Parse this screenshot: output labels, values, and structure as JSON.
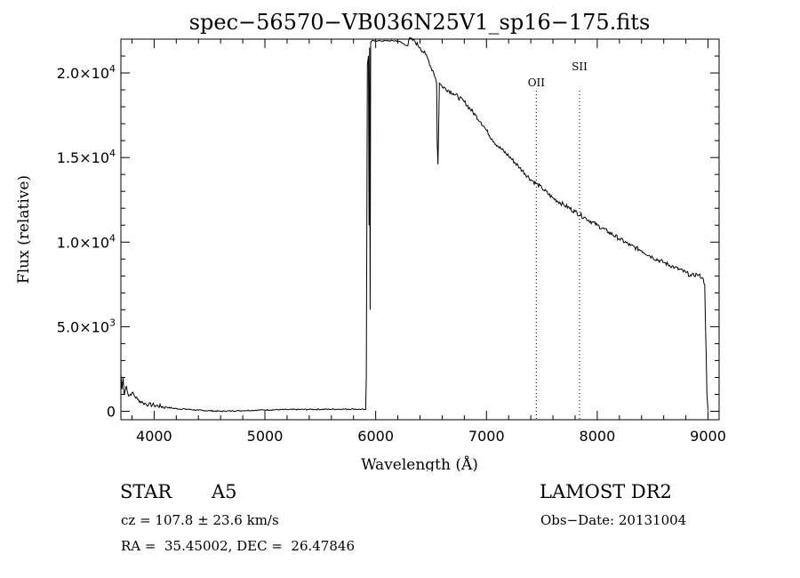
{
  "chart_data": {
    "type": "line",
    "title": "spec−56570−VB036N25V1_sp16−175.fits",
    "xlabel": "Wavelength (Å)",
    "ylabel": "Flux (relative)",
    "xlim": [
      3700,
      9100
    ],
    "ylim": [
      -500,
      22000
    ],
    "x_ticks": [
      {
        "value": 4000,
        "label": "4000"
      },
      {
        "value": 5000,
        "label": "5000"
      },
      {
        "value": 6000,
        "label": "6000"
      },
      {
        "value": 7000,
        "label": "7000"
      },
      {
        "value": 8000,
        "label": "8000"
      },
      {
        "value": 9000,
        "label": "9000"
      }
    ],
    "y_ticks": [
      {
        "value": 0,
        "mantissa": "0",
        "exp": ""
      },
      {
        "value": 5000,
        "mantissa": "5.0×10",
        "exp": "3"
      },
      {
        "value": 10000,
        "mantissa": "1.0×10",
        "exp": "4"
      },
      {
        "value": 15000,
        "mantissa": "1.5×10",
        "exp": "4"
      },
      {
        "value": 20000,
        "mantissa": "2.0×10",
        "exp": "4"
      }
    ],
    "lines": [
      {
        "name": "OII",
        "wavelength": 7450
      },
      {
        "name": "SII",
        "wavelength": 7840
      }
    ],
    "series": [
      {
        "name": "flux",
        "points": [
          [
            3700,
            2200
          ],
          [
            3710,
            1300
          ],
          [
            3720,
            2000
          ],
          [
            3730,
            1000
          ],
          [
            3750,
            1500
          ],
          [
            3770,
            900
          ],
          [
            3800,
            1100
          ],
          [
            3850,
            700
          ],
          [
            3900,
            500
          ],
          [
            3950,
            400
          ],
          [
            4000,
            350
          ],
          [
            4100,
            250
          ],
          [
            4200,
            150
          ],
          [
            4300,
            120
          ],
          [
            4400,
            60
          ],
          [
            4500,
            30
          ],
          [
            4600,
            0
          ],
          [
            4700,
            20
          ],
          [
            4800,
            40
          ],
          [
            5000,
            80
          ],
          [
            5200,
            100
          ],
          [
            5400,
            110
          ],
          [
            5600,
            120
          ],
          [
            5800,
            130
          ],
          [
            5910,
            100
          ],
          [
            5915,
            2000
          ],
          [
            5925,
            20500
          ],
          [
            5935,
            21000
          ],
          [
            5940,
            11000
          ],
          [
            5945,
            21500
          ],
          [
            5950,
            6000
          ],
          [
            5955,
            21800
          ],
          [
            5965,
            21900
          ],
          [
            6100,
            21900
          ],
          [
            6200,
            21900
          ],
          [
            6290,
            21600
          ],
          [
            6300,
            22000
          ],
          [
            6350,
            21900
          ],
          [
            6400,
            21500
          ],
          [
            6450,
            21100
          ],
          [
            6480,
            20700
          ],
          [
            6500,
            20300
          ],
          [
            6520,
            20100
          ],
          [
            6540,
            19700
          ],
          [
            6550,
            19400
          ],
          [
            6555,
            16000
          ],
          [
            6562,
            14600
          ],
          [
            6568,
            16500
          ],
          [
            6575,
            19400
          ],
          [
            6600,
            19200
          ],
          [
            6700,
            18800
          ],
          [
            6800,
            18300
          ],
          [
            6900,
            17500
          ],
          [
            6950,
            17100
          ],
          [
            7000,
            16600
          ],
          [
            7050,
            16100
          ],
          [
            7100,
            15700
          ],
          [
            7200,
            15100
          ],
          [
            7300,
            14400
          ],
          [
            7400,
            13700
          ],
          [
            7500,
            13200
          ],
          [
            7600,
            12600
          ],
          [
            7700,
            12200
          ],
          [
            7800,
            11800
          ],
          [
            7900,
            11400
          ],
          [
            8000,
            11000
          ],
          [
            8100,
            10600
          ],
          [
            8200,
            10200
          ],
          [
            8300,
            9800
          ],
          [
            8400,
            9500
          ],
          [
            8500,
            9100
          ],
          [
            8600,
            8800
          ],
          [
            8700,
            8500
          ],
          [
            8800,
            8200
          ],
          [
            8850,
            8000
          ],
          [
            8900,
            8100
          ],
          [
            8950,
            7900
          ],
          [
            8970,
            7500
          ],
          [
            8990,
            1000
          ],
          [
            9000,
            50
          ]
        ]
      }
    ]
  },
  "info": {
    "object_class": "STAR",
    "subclass": "A5",
    "survey": "LAMOST DR2",
    "redshift": "cz = 107.8 ± 23.6 km/s",
    "obs_date": "Obs−Date: 20131004",
    "coords": "RA =  35.45002, DEC =  26.47846"
  }
}
